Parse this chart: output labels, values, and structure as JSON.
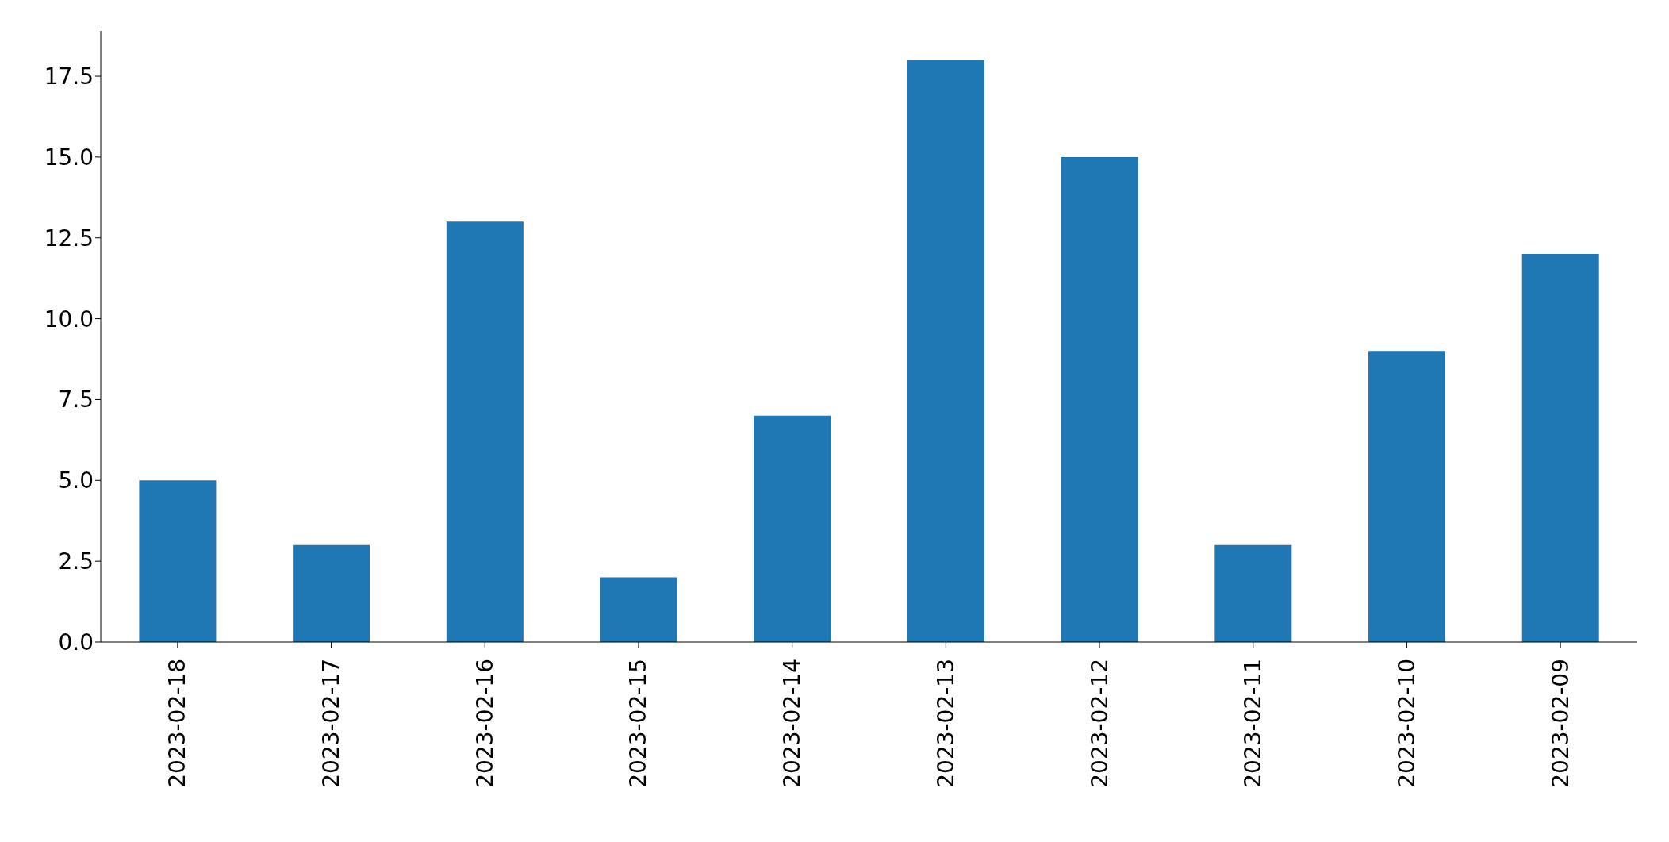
{
  "chart_data": {
    "type": "bar",
    "categories": [
      "2023-02-18",
      "2023-02-17",
      "2023-02-16",
      "2023-02-15",
      "2023-02-14",
      "2023-02-13",
      "2023-02-12",
      "2023-02-11",
      "2023-02-10",
      "2023-02-09"
    ],
    "values": [
      5,
      3,
      13,
      2,
      7,
      18,
      15,
      3,
      9,
      12
    ],
    "color": "#1f77b4",
    "ylim": [
      0,
      18.9
    ],
    "yticks": [
      {
        "value": 0,
        "label": "0.0"
      },
      {
        "value": 2.5,
        "label": "2.5"
      },
      {
        "value": 5,
        "label": "5.0"
      },
      {
        "value": 7.5,
        "label": "7.5"
      },
      {
        "value": 10,
        "label": "10.0"
      },
      {
        "value": 12.5,
        "label": "12.5"
      },
      {
        "value": 15,
        "label": "15.0"
      },
      {
        "value": 17.5,
        "label": "17.5"
      }
    ],
    "grid": false,
    "legend": false
  }
}
